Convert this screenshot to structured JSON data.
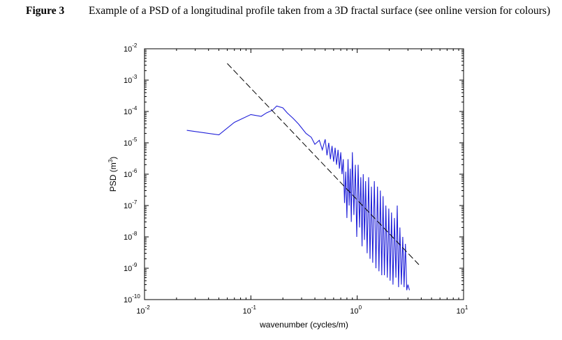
{
  "caption": {
    "label": "Figure 3",
    "text": "Example of a PSD of a longitudinal profile taken from a 3D fractal surface (see online version for colours)"
  },
  "chart_data": {
    "type": "line",
    "title": "",
    "xlabel": "wavenumber (cycles/m)",
    "ylabel_base": "PSD (m",
    "ylabel_exp": "3",
    "ylabel_close": ")",
    "xscale": "log",
    "yscale": "log",
    "xlim": [
      0.01,
      10
    ],
    "ylim": [
      1e-10,
      0.01
    ],
    "x_ticks": [
      {
        "value": 0.01,
        "base": "10",
        "exp": "-2"
      },
      {
        "value": 0.1,
        "base": "10",
        "exp": "-1"
      },
      {
        "value": 1,
        "base": "10",
        "exp": "0"
      },
      {
        "value": 10,
        "base": "10",
        "exp": "1"
      }
    ],
    "y_ticks": [
      {
        "value": 0.01,
        "base": "10",
        "exp": "-2"
      },
      {
        "value": 0.001,
        "base": "10",
        "exp": "-3"
      },
      {
        "value": 0.0001,
        "base": "10",
        "exp": "-4"
      },
      {
        "value": 1e-05,
        "base": "10",
        "exp": "-5"
      },
      {
        "value": 1e-06,
        "base": "10",
        "exp": "-6"
      },
      {
        "value": 1e-07,
        "base": "10",
        "exp": "-7"
      },
      {
        "value": 1e-08,
        "base": "10",
        "exp": "-8"
      },
      {
        "value": 1e-09,
        "base": "10",
        "exp": "-9"
      },
      {
        "value": 1e-10,
        "base": "10",
        "exp": "-10"
      }
    ],
    "grid": false,
    "colors": {
      "psd": "#1f1fd9",
      "fit": "#000000",
      "axes": "#000000"
    },
    "series": [
      {
        "style": "solid",
        "color": "#1f1fd9",
        "x": [
          0.025,
          0.05,
          0.07,
          0.1,
          0.125,
          0.14,
          0.16,
          0.175,
          0.2,
          0.22,
          0.25,
          0.28,
          0.3,
          0.33,
          0.37,
          0.4,
          0.44,
          0.47,
          0.5,
          0.52,
          0.54,
          0.56,
          0.58,
          0.6,
          0.62,
          0.64,
          0.66,
          0.68,
          0.7,
          0.72,
          0.74,
          0.76,
          0.78,
          0.8,
          0.82,
          0.84,
          0.86,
          0.88,
          0.9,
          0.93,
          0.96,
          0.99,
          1.02,
          1.05,
          1.08,
          1.11,
          1.14,
          1.17,
          1.2,
          1.24,
          1.28,
          1.32,
          1.36,
          1.4,
          1.45,
          1.5,
          1.55,
          1.6,
          1.65,
          1.7,
          1.75,
          1.8,
          1.86,
          1.92,
          1.98,
          2.04,
          2.1,
          2.17,
          2.24,
          2.31,
          2.38,
          2.45,
          2.52,
          2.6,
          2.68,
          2.76,
          2.84,
          2.92,
          3.0,
          3.1
        ],
        "y": [
          2.5e-05,
          1.8e-05,
          4.5e-05,
          8e-05,
          7e-05,
          9e-05,
          0.00011,
          0.00015,
          0.00013,
          9e-05,
          6e-05,
          4e-05,
          3e-05,
          2e-05,
          1.5e-05,
          9e-06,
          1.2e-05,
          6e-06,
          1.3e-05,
          4e-06,
          1e-05,
          3e-06,
          8e-06,
          2.5e-06,
          7e-06,
          2e-06,
          6e-06,
          1.5e-06,
          5e-06,
          1e-06,
          3e-06,
          1.2e-07,
          1.2e-06,
          4e-08,
          3e-06,
          1e-07,
          1.5e-06,
          3e-08,
          5e-06,
          5e-08,
          2e-06,
          1e-08,
          2e-06,
          2e-08,
          8e-07,
          5e-09,
          1e-06,
          8e-09,
          6e-07,
          3e-09,
          8e-07,
          2e-09,
          4e-07,
          1.5e-09,
          6e-07,
          1e-09,
          4e-07,
          8e-10,
          3e-07,
          6e-10,
          2e-07,
          6e-10,
          1e-07,
          5e-10,
          8e-08,
          4e-10,
          6e-08,
          3e-10,
          4e-08,
          5e-10,
          1e-07,
          2.5e-10,
          2e-08,
          3e-10,
          1e-08,
          2.5e-10,
          6e-09,
          2e-10,
          3e-10,
          2e-10
        ]
      },
      {
        "style": "dashed",
        "color": "#000000",
        "x": [
          0.06,
          3.8
        ],
        "y": [
          0.0034,
          1.3e-09
        ]
      }
    ]
  }
}
